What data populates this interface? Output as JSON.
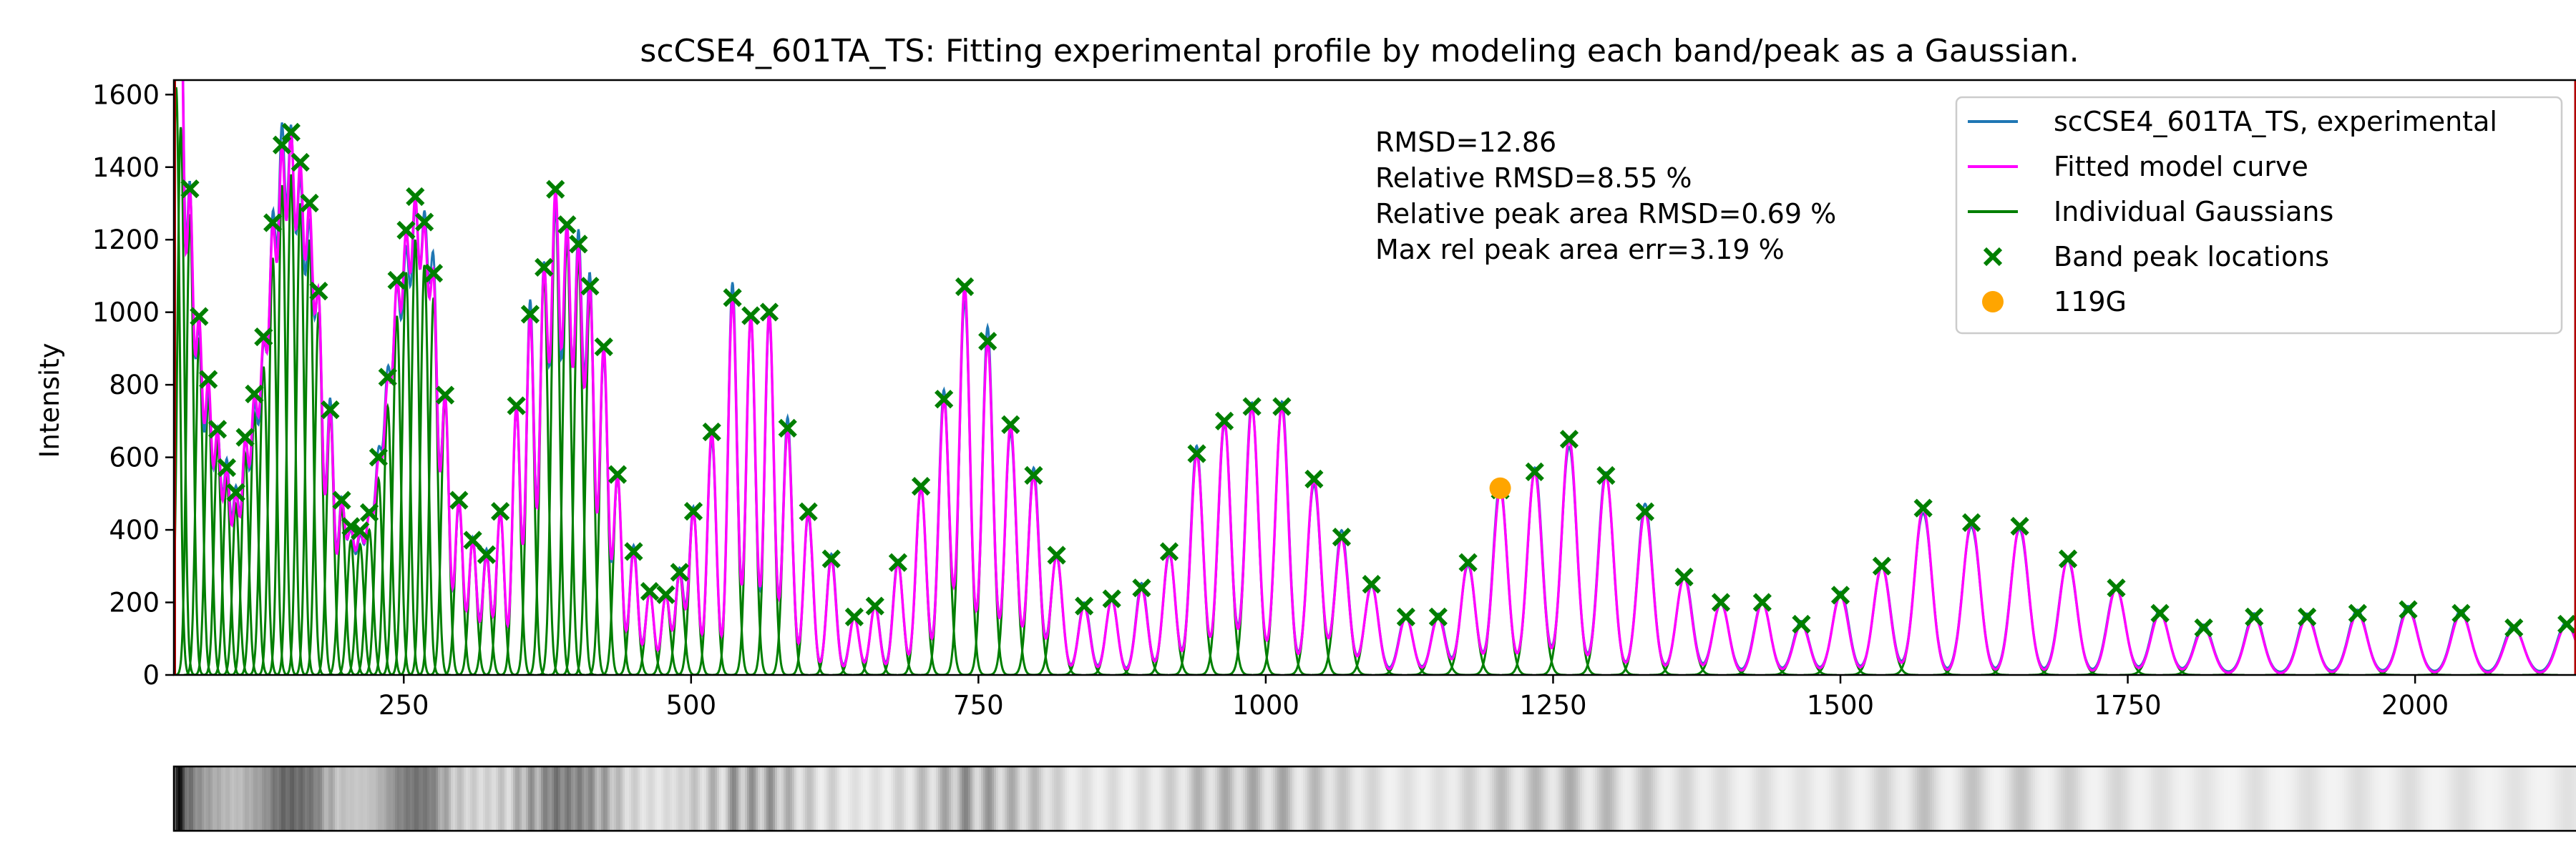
{
  "chart_data": {
    "type": "line",
    "title": "scCSE4_601TA_TS: Fitting experimental profile by modeling each band/peak as a Gaussian.",
    "xlabel": "",
    "ylabel": "Intensity",
    "xlim": [
      50,
      2140
    ],
    "ylim": [
      0,
      1640
    ],
    "x_ticks": [
      250,
      500,
      750,
      1000,
      1250,
      1500,
      1750,
      2000
    ],
    "y_ticks": [
      0,
      200,
      400,
      600,
      800,
      1000,
      1200,
      1400,
      1600
    ],
    "grid": false,
    "legend_placement": "top-right",
    "stats_text": [
      "RMSD=12.86",
      "Relative RMSD=8.55 %",
      "Relative peak area RMSD=0.69 %",
      "Max rel peak area err=3.19 %"
    ],
    "legend": [
      {
        "label": "scCSE4_601TA_TS, experimental",
        "kind": "line",
        "color": "#1f77b4"
      },
      {
        "label": "Fitted model curve",
        "kind": "line",
        "color": "#ff00ff"
      },
      {
        "label": "Individual Gaussians",
        "kind": "line",
        "color": "#007f00"
      },
      {
        "label": "Band peak locations",
        "kind": "x-marker",
        "color": "#007f00"
      },
      {
        "label": "119G",
        "kind": "dot",
        "color": "#ffa500"
      }
    ],
    "peaks": [
      {
        "x": 52,
        "y": 1620,
        "sigma": 3
      },
      {
        "x": 56,
        "y": 1510,
        "sigma": 3
      },
      {
        "x": 64,
        "y": 1270,
        "sigma": 3
      },
      {
        "x": 72,
        "y": 930,
        "sigma": 3
      },
      {
        "x": 80,
        "y": 770,
        "sigma": 3
      },
      {
        "x": 88,
        "y": 640,
        "sigma": 3
      },
      {
        "x": 96,
        "y": 540,
        "sigma": 3
      },
      {
        "x": 104,
        "y": 470,
        "sigma": 3
      },
      {
        "x": 112,
        "y": 610,
        "sigma": 3
      },
      {
        "x": 120,
        "y": 720,
        "sigma": 3.2
      },
      {
        "x": 128,
        "y": 850,
        "sigma": 3.2
      },
      {
        "x": 136,
        "y": 1150,
        "sigma": 3.2
      },
      {
        "x": 144,
        "y": 1350,
        "sigma": 3.2
      },
      {
        "x": 152,
        "y": 1380,
        "sigma": 3.2
      },
      {
        "x": 160,
        "y": 1300,
        "sigma": 3.2
      },
      {
        "x": 168,
        "y": 1200,
        "sigma": 3.2
      },
      {
        "x": 176,
        "y": 1000,
        "sigma": 3.2
      },
      {
        "x": 186,
        "y": 720,
        "sigma": 3.2
      },
      {
        "x": 196,
        "y": 460,
        "sigma": 3.2
      },
      {
        "x": 204,
        "y": 370,
        "sigma": 3.2
      },
      {
        "x": 212,
        "y": 360,
        "sigma": 3.3
      },
      {
        "x": 220,
        "y": 400,
        "sigma": 3.3
      },
      {
        "x": 228,
        "y": 540,
        "sigma": 3.3
      },
      {
        "x": 236,
        "y": 740,
        "sigma": 3.3
      },
      {
        "x": 244,
        "y": 990,
        "sigma": 3.3
      },
      {
        "x": 252,
        "y": 1110,
        "sigma": 3.3
      },
      {
        "x": 260,
        "y": 1200,
        "sigma": 3.3
      },
      {
        "x": 268,
        "y": 1130,
        "sigma": 3.3
      },
      {
        "x": 276,
        "y": 1040,
        "sigma": 3.3
      },
      {
        "x": 286,
        "y": 760,
        "sigma": 3.3
      },
      {
        "x": 298,
        "y": 480,
        "sigma": 3.4
      },
      {
        "x": 310,
        "y": 370,
        "sigma": 3.4
      },
      {
        "x": 322,
        "y": 330,
        "sigma": 3.4
      },
      {
        "x": 334,
        "y": 450,
        "sigma": 3.4
      },
      {
        "x": 348,
        "y": 740,
        "sigma": 3.4
      },
      {
        "x": 360,
        "y": 990,
        "sigma": 3.4
      },
      {
        "x": 372,
        "y": 1100,
        "sigma": 3.5
      },
      {
        "x": 382,
        "y": 1300,
        "sigma": 3.5
      },
      {
        "x": 392,
        "y": 1200,
        "sigma": 3.5
      },
      {
        "x": 402,
        "y": 1150,
        "sigma": 3.5
      },
      {
        "x": 412,
        "y": 1050,
        "sigma": 3.5
      },
      {
        "x": 424,
        "y": 900,
        "sigma": 3.5
      },
      {
        "x": 436,
        "y": 550,
        "sigma": 3.5
      },
      {
        "x": 450,
        "y": 340,
        "sigma": 3.6
      },
      {
        "x": 464,
        "y": 230,
        "sigma": 3.6
      },
      {
        "x": 478,
        "y": 220,
        "sigma": 3.6
      },
      {
        "x": 490,
        "y": 280,
        "sigma": 3.6
      },
      {
        "x": 502,
        "y": 450,
        "sigma": 3.7
      },
      {
        "x": 518,
        "y": 670,
        "sigma": 3.8
      },
      {
        "x": 536,
        "y": 1040,
        "sigma": 3.9
      },
      {
        "x": 552,
        "y": 990,
        "sigma": 3.9
      },
      {
        "x": 568,
        "y": 1000,
        "sigma": 3.9
      },
      {
        "x": 584,
        "y": 680,
        "sigma": 4
      },
      {
        "x": 602,
        "y": 450,
        "sigma": 4
      },
      {
        "x": 622,
        "y": 320,
        "sigma": 4.1
      },
      {
        "x": 642,
        "y": 160,
        "sigma": 4.2
      },
      {
        "x": 660,
        "y": 190,
        "sigma": 4.2
      },
      {
        "x": 680,
        "y": 310,
        "sigma": 4.3
      },
      {
        "x": 700,
        "y": 520,
        "sigma": 4.4
      },
      {
        "x": 720,
        "y": 760,
        "sigma": 4.5
      },
      {
        "x": 738,
        "y": 1070,
        "sigma": 4.5
      },
      {
        "x": 758,
        "y": 920,
        "sigma": 4.6
      },
      {
        "x": 778,
        "y": 690,
        "sigma": 4.7
      },
      {
        "x": 798,
        "y": 550,
        "sigma": 4.8
      },
      {
        "x": 818,
        "y": 330,
        "sigma": 4.9
      },
      {
        "x": 842,
        "y": 190,
        "sigma": 5
      },
      {
        "x": 866,
        "y": 210,
        "sigma": 5
      },
      {
        "x": 892,
        "y": 240,
        "sigma": 5.1
      },
      {
        "x": 916,
        "y": 340,
        "sigma": 5.2
      },
      {
        "x": 940,
        "y": 610,
        "sigma": 5.3
      },
      {
        "x": 964,
        "y": 700,
        "sigma": 5.4
      },
      {
        "x": 988,
        "y": 740,
        "sigma": 5.5
      },
      {
        "x": 1014,
        "y": 740,
        "sigma": 5.6
      },
      {
        "x": 1042,
        "y": 540,
        "sigma": 5.7
      },
      {
        "x": 1066,
        "y": 380,
        "sigma": 5.8
      },
      {
        "x": 1092,
        "y": 250,
        "sigma": 5.9
      },
      {
        "x": 1122,
        "y": 160,
        "sigma": 6
      },
      {
        "x": 1150,
        "y": 160,
        "sigma": 6
      },
      {
        "x": 1176,
        "y": 310,
        "sigma": 6.1
      },
      {
        "x": 1204,
        "y": 510,
        "sigma": 6.2
      },
      {
        "x": 1234,
        "y": 560,
        "sigma": 6.3
      },
      {
        "x": 1264,
        "y": 650,
        "sigma": 6.4
      },
      {
        "x": 1296,
        "y": 550,
        "sigma": 6.5
      },
      {
        "x": 1330,
        "y": 450,
        "sigma": 6.6
      },
      {
        "x": 1364,
        "y": 270,
        "sigma": 6.7
      },
      {
        "x": 1396,
        "y": 200,
        "sigma": 6.8
      },
      {
        "x": 1432,
        "y": 200,
        "sigma": 6.9
      },
      {
        "x": 1466,
        "y": 140,
        "sigma": 7
      },
      {
        "x": 1500,
        "y": 220,
        "sigma": 7.1
      },
      {
        "x": 1536,
        "y": 300,
        "sigma": 7.2
      },
      {
        "x": 1572,
        "y": 460,
        "sigma": 7.3
      },
      {
        "x": 1614,
        "y": 420,
        "sigma": 7.4
      },
      {
        "x": 1656,
        "y": 410,
        "sigma": 7.5
      },
      {
        "x": 1698,
        "y": 320,
        "sigma": 7.6
      },
      {
        "x": 1740,
        "y": 240,
        "sigma": 7.7
      },
      {
        "x": 1778,
        "y": 170,
        "sigma": 7.8
      },
      {
        "x": 1816,
        "y": 130,
        "sigma": 7.9
      },
      {
        "x": 1860,
        "y": 160,
        "sigma": 8
      },
      {
        "x": 1906,
        "y": 160,
        "sigma": 8.1
      },
      {
        "x": 1950,
        "y": 170,
        "sigma": 8.2
      },
      {
        "x": 1994,
        "y": 180,
        "sigma": 8.3
      },
      {
        "x": 2040,
        "y": 170,
        "sigma": 8.4
      },
      {
        "x": 2086,
        "y": 130,
        "sigma": 8.5
      },
      {
        "x": 2132,
        "y": 140,
        "sigma": 8.6
      }
    ],
    "highlight_point": {
      "label": "119G",
      "x": 1204,
      "y": 515
    }
  }
}
